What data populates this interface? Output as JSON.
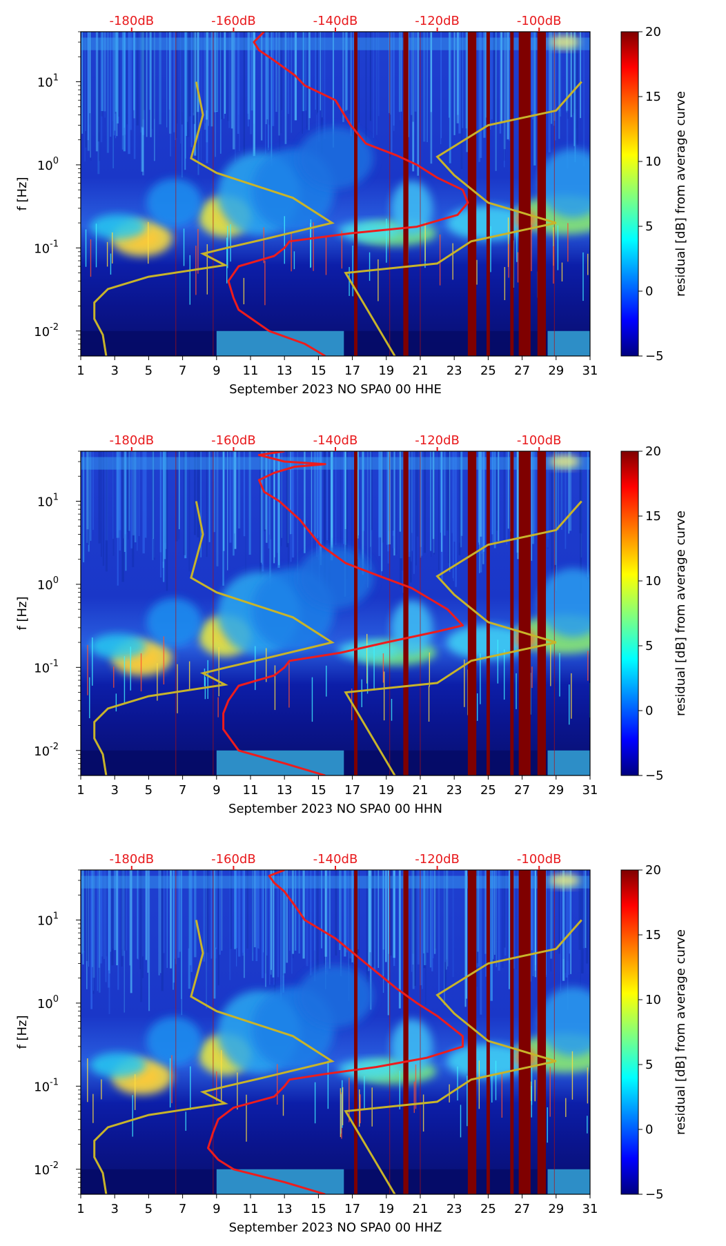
{
  "chart_data": [
    {
      "type": "heatmap",
      "channel": "HHE",
      "xlabel": "September 2023 NO SPA0 00 HHE",
      "ylabel": "f [Hz]",
      "x_ticks": [
        "1",
        "3",
        "5",
        "7",
        "9",
        "11",
        "13",
        "15",
        "17",
        "19",
        "21",
        "23",
        "25",
        "27",
        "29",
        "31"
      ],
      "xlim": [
        1,
        31
      ],
      "ylim_hz": [
        0.005,
        40
      ],
      "y_ticks": [
        {
          "exp": -2,
          "v": 0.01
        },
        {
          "exp": -1,
          "v": 0.1
        },
        {
          "exp": 0,
          "v": 1
        },
        {
          "exp": 1,
          "v": 10
        }
      ],
      "top_axis": {
        "labels": [
          "-180dB",
          "-160dB",
          "-140dB",
          "-120dB",
          "-100dB"
        ],
        "db_range": [
          -190,
          -90
        ]
      },
      "colorbar": {
        "label": "residual [dB] from average curve",
        "range": [
          -5,
          20
        ],
        "ticks": [
          -5,
          0,
          5,
          10,
          15,
          20
        ]
      },
      "red_curve": {
        "name": "average PSD (top-axis dB)",
        "points_db_hz": [
          [
            -154,
            40
          ],
          [
            -156,
            30
          ],
          [
            -155,
            24
          ],
          [
            -152,
            18
          ],
          [
            -148,
            12
          ],
          [
            -146,
            9
          ],
          [
            -140,
            6
          ],
          [
            -137,
            3
          ],
          [
            -134,
            1.8
          ],
          [
            -128,
            1.3
          ],
          [
            -124,
            1
          ],
          [
            -120,
            0.7
          ],
          [
            -115,
            0.5
          ],
          [
            -114,
            0.35
          ],
          [
            -116,
            0.25
          ],
          [
            -124,
            0.18
          ],
          [
            -137,
            0.15
          ],
          [
            -149,
            0.12
          ],
          [
            -150,
            0.1
          ],
          [
            -152,
            0.08
          ],
          [
            -159,
            0.06
          ],
          [
            -161,
            0.04
          ],
          [
            -160,
            0.025
          ],
          [
            -159,
            0.018
          ],
          [
            -153,
            0.01
          ],
          [
            -146,
            0.007
          ],
          [
            -142,
            0.005
          ]
        ]
      },
      "yellow_curves": [
        {
          "name": "left noise model",
          "points_day_hz": [
            [
              2.5,
              0.005
            ],
            [
              2.3,
              0.009
            ],
            [
              1.8,
              0.014
            ],
            [
              1.8,
              0.022
            ],
            [
              2.6,
              0.032
            ],
            [
              5,
              0.045
            ],
            [
              9.5,
              0.062
            ],
            [
              8.2,
              0.085
            ],
            [
              9.6,
              0.1
            ],
            [
              12,
              0.13
            ],
            [
              15.8,
              0.2
            ],
            [
              13.5,
              0.4
            ],
            [
              9,
              0.8
            ],
            [
              7.5,
              1.2
            ],
            [
              8.2,
              4
            ],
            [
              7.8,
              10
            ]
          ]
        },
        {
          "name": "right noise model",
          "points_day_hz": [
            [
              19.5,
              0.005
            ],
            [
              16.6,
              0.05
            ],
            [
              22,
              0.065
            ],
            [
              24,
              0.12
            ],
            [
              29,
              0.2
            ],
            [
              25,
              0.35
            ],
            [
              23,
              0.75
            ],
            [
              22,
              1.25
            ],
            [
              25,
              3
            ],
            [
              29,
              4.5
            ],
            [
              30.5,
              10
            ]
          ]
        }
      ],
      "dark_red_bands": [
        [
          17.1,
          17.3
        ],
        [
          20.0,
          20.3
        ],
        [
          23.8,
          24.3
        ],
        [
          24.9,
          25.1
        ],
        [
          26.3,
          26.5
        ],
        [
          26.8,
          27.5
        ],
        [
          27.9,
          28.4
        ]
      ]
    },
    {
      "type": "heatmap",
      "channel": "HHN",
      "xlabel": "September 2023 NO SPA0 00 HHN",
      "ylabel": "f [Hz]",
      "x_ticks": [
        "1",
        "3",
        "5",
        "7",
        "9",
        "11",
        "13",
        "15",
        "17",
        "19",
        "21",
        "23",
        "25",
        "27",
        "29",
        "31"
      ],
      "xlim": [
        1,
        31
      ],
      "ylim_hz": [
        0.005,
        40
      ],
      "y_ticks": [
        {
          "exp": -2,
          "v": 0.01
        },
        {
          "exp": -1,
          "v": 0.1
        },
        {
          "exp": 0,
          "v": 1
        },
        {
          "exp": 1,
          "v": 10
        }
      ],
      "top_axis": {
        "labels": [
          "-180dB",
          "-160dB",
          "-140dB",
          "-120dB",
          "-100dB"
        ],
        "db_range": [
          -190,
          -90
        ]
      },
      "colorbar": {
        "label": "residual [dB] from average curve",
        "range": [
          -5,
          20
        ],
        "ticks": [
          -5,
          0,
          5,
          10,
          15,
          20
        ]
      },
      "red_curve": {
        "name": "average PSD (top-axis dB)",
        "points_db_hz": [
          [
            -150,
            40
          ],
          [
            -155,
            36
          ],
          [
            -150,
            30
          ],
          [
            -142,
            28
          ],
          [
            -148,
            26
          ],
          [
            -152,
            22
          ],
          [
            -155,
            18
          ],
          [
            -154,
            13
          ],
          [
            -151,
            10
          ],
          [
            -147,
            6
          ],
          [
            -143,
            3
          ],
          [
            -138,
            1.8
          ],
          [
            -132,
            1.3
          ],
          [
            -125,
            0.9
          ],
          [
            -118,
            0.5
          ],
          [
            -115,
            0.32
          ],
          [
            -120,
            0.27
          ],
          [
            -130,
            0.2
          ],
          [
            -139,
            0.15
          ],
          [
            -149,
            0.12
          ],
          [
            -150,
            0.1
          ],
          [
            -152,
            0.08
          ],
          [
            -159,
            0.06
          ],
          [
            -161,
            0.04
          ],
          [
            -162,
            0.028
          ],
          [
            -162,
            0.018
          ],
          [
            -159,
            0.01
          ],
          [
            -150,
            0.007
          ],
          [
            -142,
            0.005
          ]
        ]
      },
      "yellow_curves": [
        {
          "name": "left noise model",
          "points_day_hz": [
            [
              2.5,
              0.005
            ],
            [
              2.3,
              0.009
            ],
            [
              1.8,
              0.014
            ],
            [
              1.8,
              0.022
            ],
            [
              2.6,
              0.032
            ],
            [
              5,
              0.045
            ],
            [
              9.5,
              0.062
            ],
            [
              8.2,
              0.085
            ],
            [
              9.6,
              0.1
            ],
            [
              12,
              0.13
            ],
            [
              15.8,
              0.2
            ],
            [
              13.5,
              0.4
            ],
            [
              9,
              0.8
            ],
            [
              7.5,
              1.2
            ],
            [
              8.2,
              4
            ],
            [
              7.8,
              10
            ]
          ]
        },
        {
          "name": "right noise model",
          "points_day_hz": [
            [
              19.5,
              0.005
            ],
            [
              16.6,
              0.05
            ],
            [
              22,
              0.065
            ],
            [
              24,
              0.12
            ],
            [
              29,
              0.2
            ],
            [
              25,
              0.35
            ],
            [
              23,
              0.75
            ],
            [
              22,
              1.25
            ],
            [
              25,
              3
            ],
            [
              29,
              4.5
            ],
            [
              30.5,
              10
            ]
          ]
        }
      ],
      "dark_red_bands": [
        [
          17.1,
          17.3
        ],
        [
          20.0,
          20.3
        ],
        [
          23.8,
          24.3
        ],
        [
          24.9,
          25.1
        ],
        [
          26.3,
          26.5
        ],
        [
          26.8,
          27.5
        ],
        [
          27.9,
          28.4
        ]
      ]
    },
    {
      "type": "heatmap",
      "channel": "HHZ",
      "xlabel": "September 2023 NO SPA0 00 HHZ",
      "ylabel": "f [Hz]",
      "x_ticks": [
        "1",
        "3",
        "5",
        "7",
        "9",
        "11",
        "13",
        "15",
        "17",
        "19",
        "21",
        "23",
        "25",
        "27",
        "29",
        "31"
      ],
      "xlim": [
        1,
        31
      ],
      "ylim_hz": [
        0.005,
        40
      ],
      "y_ticks": [
        {
          "exp": -2,
          "v": 0.01
        },
        {
          "exp": -1,
          "v": 0.1
        },
        {
          "exp": 0,
          "v": 1
        },
        {
          "exp": 1,
          "v": 10
        }
      ],
      "top_axis": {
        "labels": [
          "-180dB",
          "-160dB",
          "-140dB",
          "-120dB",
          "-100dB"
        ],
        "db_range": [
          -190,
          -90
        ]
      },
      "colorbar": {
        "label": "residual [dB] from average curve",
        "range": [
          -5,
          20
        ],
        "ticks": [
          -5,
          0,
          5,
          10,
          15,
          20
        ]
      },
      "red_curve": {
        "name": "average PSD (top-axis dB)",
        "points_db_hz": [
          [
            -150,
            40
          ],
          [
            -153,
            34
          ],
          [
            -152,
            28
          ],
          [
            -150,
            22
          ],
          [
            -148,
            15
          ],
          [
            -146,
            10
          ],
          [
            -140,
            6
          ],
          [
            -134,
            3
          ],
          [
            -128,
            1.5
          ],
          [
            -124,
            1
          ],
          [
            -120,
            0.7
          ],
          [
            -115,
            0.4
          ],
          [
            -115,
            0.3
          ],
          [
            -122,
            0.22
          ],
          [
            -132,
            0.17
          ],
          [
            -142,
            0.14
          ],
          [
            -149,
            0.12
          ],
          [
            -150,
            0.1
          ],
          [
            -152,
            0.075
          ],
          [
            -160,
            0.055
          ],
          [
            -163,
            0.04
          ],
          [
            -164,
            0.028
          ],
          [
            -165,
            0.018
          ],
          [
            -163,
            0.013
          ],
          [
            -160,
            0.01
          ],
          [
            -150,
            0.007
          ],
          [
            -142,
            0.005
          ]
        ]
      },
      "yellow_curves": [
        {
          "name": "left noise model",
          "points_day_hz": [
            [
              2.5,
              0.005
            ],
            [
              2.3,
              0.009
            ],
            [
              1.8,
              0.014
            ],
            [
              1.8,
              0.022
            ],
            [
              2.6,
              0.032
            ],
            [
              5,
              0.045
            ],
            [
              9.5,
              0.062
            ],
            [
              8.2,
              0.085
            ],
            [
              9.6,
              0.1
            ],
            [
              12,
              0.13
            ],
            [
              15.8,
              0.2
            ],
            [
              13.5,
              0.4
            ],
            [
              9,
              0.8
            ],
            [
              7.5,
              1.2
            ],
            [
              8.2,
              4
            ],
            [
              7.8,
              10
            ]
          ]
        },
        {
          "name": "right noise model",
          "points_day_hz": [
            [
              19.5,
              0.005
            ],
            [
              16.6,
              0.05
            ],
            [
              22,
              0.065
            ],
            [
              24,
              0.12
            ],
            [
              29,
              0.2
            ],
            [
              25,
              0.35
            ],
            [
              23,
              0.75
            ],
            [
              22,
              1.25
            ],
            [
              25,
              3
            ],
            [
              29,
              4.5
            ],
            [
              30.5,
              10
            ]
          ]
        }
      ],
      "dark_red_bands": [
        [
          17.1,
          17.3
        ],
        [
          20.0,
          20.3
        ],
        [
          23.8,
          24.3
        ],
        [
          24.9,
          25.1
        ],
        [
          26.3,
          26.5
        ],
        [
          26.8,
          27.5
        ],
        [
          27.9,
          28.4
        ]
      ]
    }
  ]
}
